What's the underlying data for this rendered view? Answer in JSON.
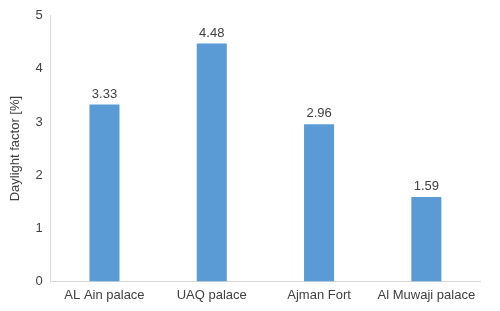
{
  "chart_data": {
    "type": "bar",
    "y_label": "Daylight factor [%]",
    "categories": [
      "AL Ain palace",
      "UAQ palace",
      "Ajman Fort",
      "Al Muwaji palace"
    ],
    "values": [
      3.33,
      4.48,
      2.96,
      1.59
    ],
    "color": "#5b9bd5",
    "ylim": [
      0,
      5
    ],
    "yticks": [
      0,
      1,
      2,
      3,
      4,
      5
    ],
    "grid": false,
    "data_labels": true
  }
}
